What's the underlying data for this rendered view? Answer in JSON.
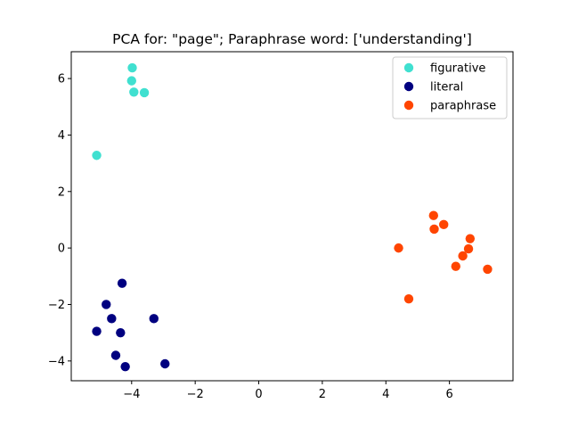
{
  "chart_data": {
    "type": "scatter",
    "title": "PCA for: \"page\"; Paraphrase word: ['understanding']",
    "xlabel": "",
    "ylabel": "",
    "xlim": [
      -5.9,
      8.0
    ],
    "ylim": [
      -4.7,
      6.95
    ],
    "xticks": [
      -4,
      -2,
      0,
      2,
      4,
      6
    ],
    "xtick_labels": [
      "−4",
      "−2",
      "0",
      "2",
      "4",
      "6"
    ],
    "yticks": [
      -4,
      -2,
      0,
      2,
      4,
      6
    ],
    "ytick_labels": [
      "−4",
      "−2",
      "0",
      "2",
      "4",
      "6"
    ],
    "grid": false,
    "legend_position": "top-right",
    "series": [
      {
        "name": "figurative",
        "color": "#40E0D0",
        "points": [
          [
            -3.98,
            6.38
          ],
          [
            -4.0,
            5.92
          ],
          [
            -3.93,
            5.52
          ],
          [
            -3.6,
            5.5
          ],
          [
            -5.1,
            3.28
          ]
        ]
      },
      {
        "name": "literal",
        "color": "#000080",
        "points": [
          [
            -4.3,
            -1.25
          ],
          [
            -4.8,
            -2.0
          ],
          [
            -4.63,
            -2.5
          ],
          [
            -3.3,
            -2.5
          ],
          [
            -5.1,
            -2.95
          ],
          [
            -4.35,
            -3.0
          ],
          [
            -4.5,
            -3.8
          ],
          [
            -4.2,
            -4.2
          ],
          [
            -2.95,
            -4.1
          ]
        ]
      },
      {
        "name": "paraphrase",
        "color": "#FF4500",
        "points": [
          [
            5.5,
            1.15
          ],
          [
            5.82,
            0.83
          ],
          [
            5.52,
            0.67
          ],
          [
            6.65,
            0.33
          ],
          [
            4.4,
            0.0
          ],
          [
            6.6,
            -0.03
          ],
          [
            6.42,
            -0.28
          ],
          [
            6.2,
            -0.65
          ],
          [
            7.2,
            -0.75
          ],
          [
            4.72,
            -1.8
          ]
        ]
      }
    ]
  }
}
